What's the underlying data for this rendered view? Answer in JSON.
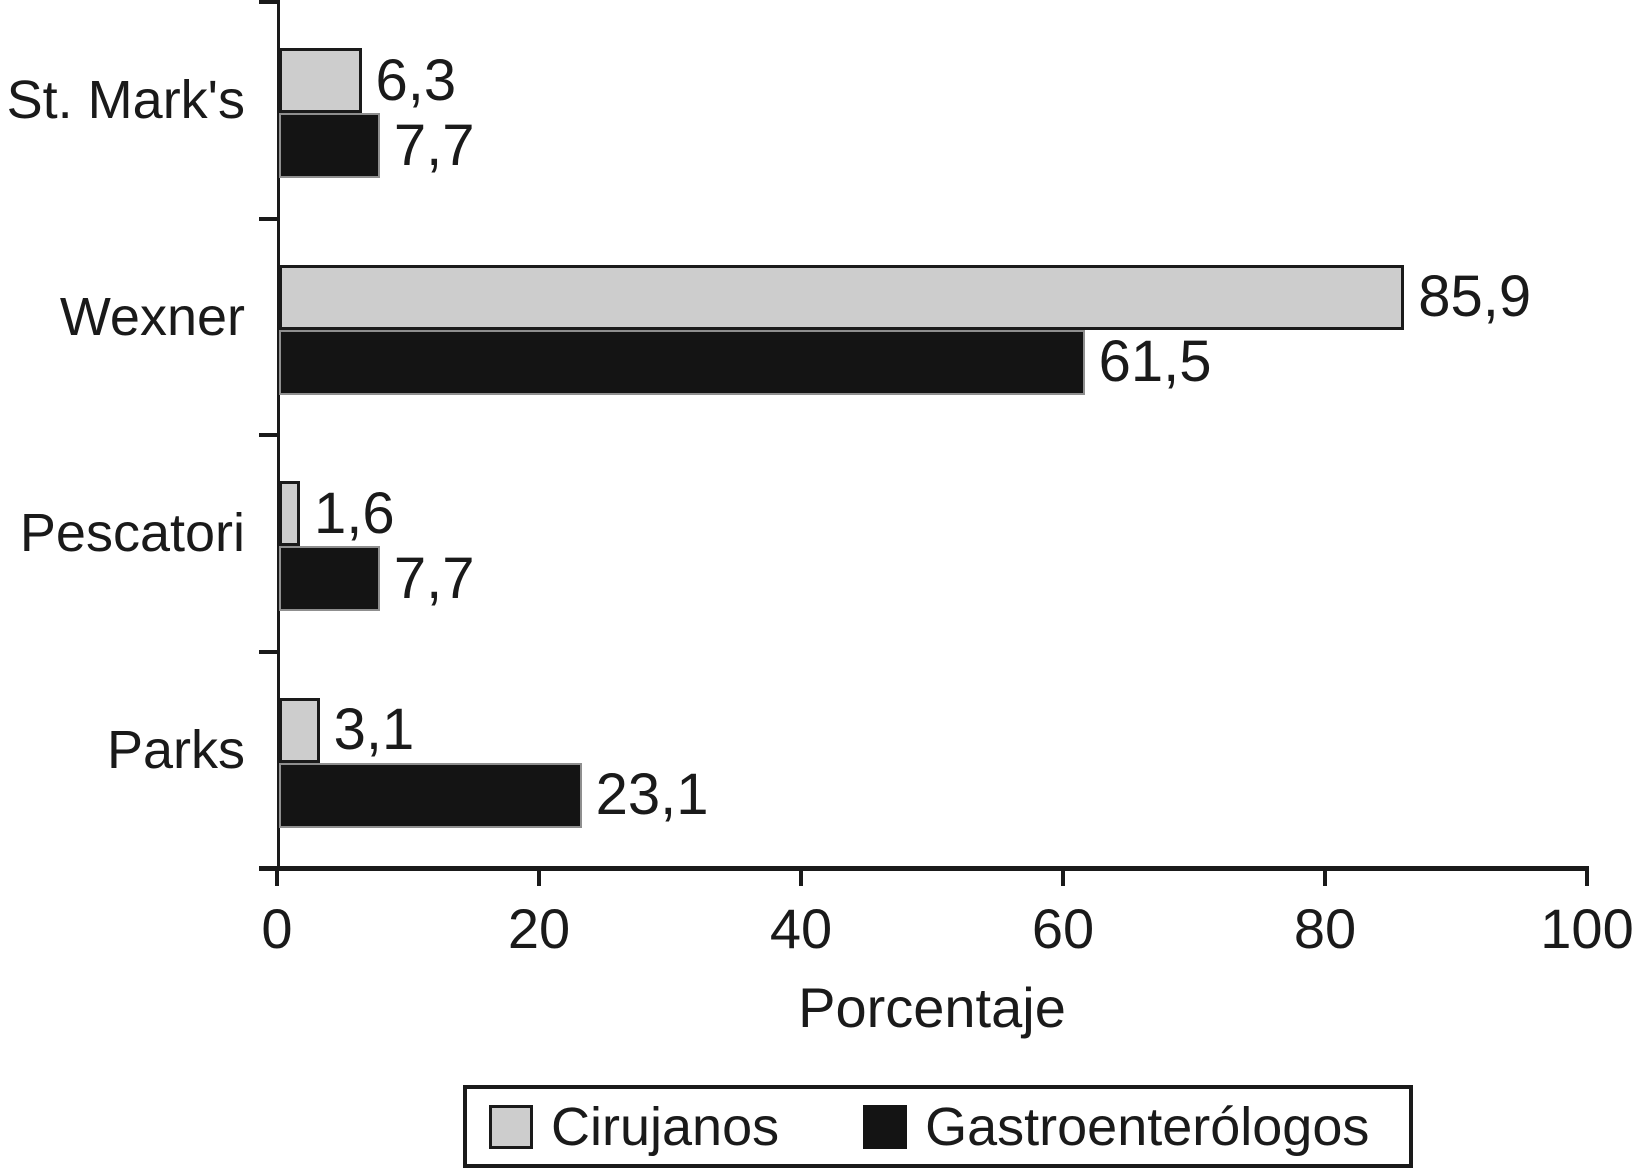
{
  "chart_data": {
    "type": "bar",
    "orientation": "horizontal",
    "title": "",
    "xlabel": "Porcentaje",
    "ylabel": "",
    "xlim": [
      0,
      100
    ],
    "x_ticks": [
      "0",
      "20",
      "40",
      "60",
      "80",
      "100"
    ],
    "grid": false,
    "background": "#ffffff",
    "axis_color": "#1a1a1a",
    "categories": [
      "St. Mark's",
      "Wexner",
      "Pescatori",
      "Parks"
    ],
    "series": [
      {
        "name": "Cirujanos",
        "color": "#cdcdcd",
        "values": [
          6.3,
          85.9,
          1.6,
          3.1
        ],
        "labels": [
          "6,3",
          "85,9",
          "1,6",
          "3,1"
        ]
      },
      {
        "name": "Gastroenterólogos",
        "color": "#141414",
        "values": [
          7.7,
          61.5,
          7.7,
          23.1
        ],
        "labels": [
          "7,7",
          "61,5",
          "7,7",
          "23,1"
        ]
      }
    ],
    "legend": {
      "position": "bottom",
      "entries": [
        "Cirujanos",
        "Gastroenterólogos"
      ]
    }
  }
}
